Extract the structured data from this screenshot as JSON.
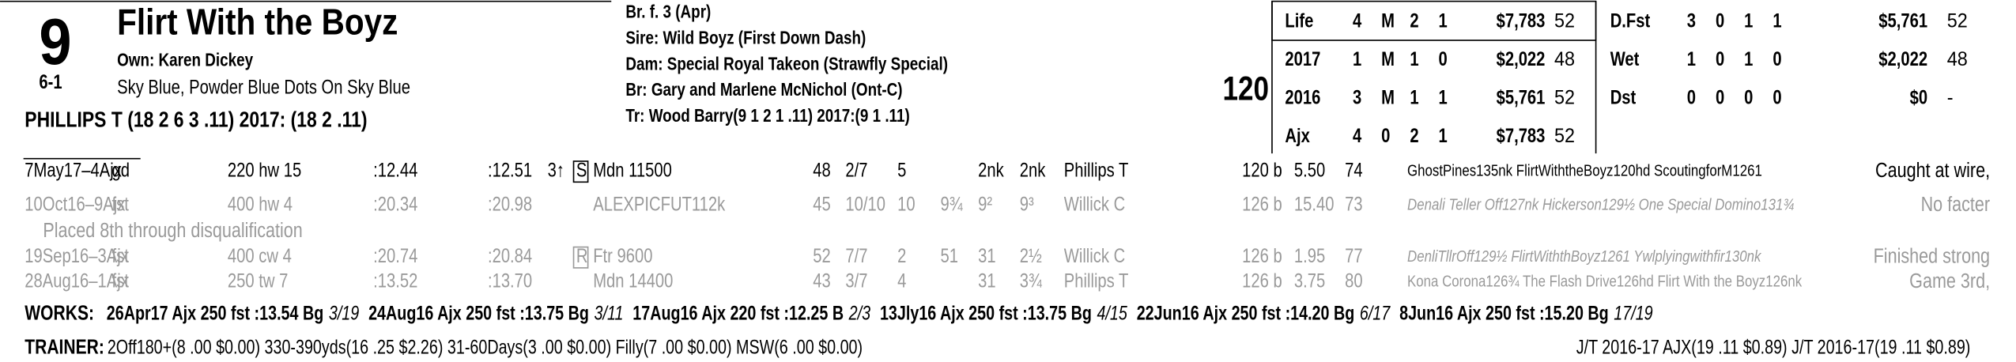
{
  "header": {
    "number": "9",
    "odds": "6-1",
    "name": "Flirt With the Boyz",
    "owner": "Own: Karen Dickey",
    "silks": "Sky Blue, Powder Blue Dots On Sky Blue",
    "jockey": "PHILLIPS T (18 2 6 3 .11) 2017: (18 2 .11)",
    "breeding": [
      "Br. f. 3 (Apr)",
      "Sire: Wild Boyz (First Down Dash)",
      "Dam: Special Royal Takeon (Strawfly Special)",
      "Br:   Gary and Marlene McNichol (Ont-C)",
      "Tr:   Wood Barry(9 1 2 1 .11)  2017:(9 1 .11)"
    ],
    "weight": "120"
  },
  "stats": {
    "left": [
      {
        "label": "Life",
        "starts": 4,
        "wins": "M",
        "places": 2,
        "shows": 1,
        "earnings": "$7,783",
        "speed": 52
      },
      {
        "label": "2017",
        "starts": 1,
        "wins": "M",
        "places": 1,
        "shows": 0,
        "earnings": "$2,022",
        "speed": 48
      },
      {
        "label": "2016",
        "starts": 3,
        "wins": "M",
        "places": 1,
        "shows": 1,
        "earnings": "$5,761",
        "speed": 52
      },
      {
        "label": "Ajx",
        "starts": 4,
        "wins": 0,
        "places": 2,
        "shows": 1,
        "earnings": "$7,783",
        "speed": 52
      }
    ],
    "right": [
      {
        "label": "D.Fst",
        "starts": 3,
        "wins": 0,
        "places": 1,
        "shows": 1,
        "earnings": "$5,761",
        "speed": 52
      },
      {
        "label": "Wet",
        "starts": 1,
        "wins": 0,
        "places": 1,
        "shows": 0,
        "earnings": "$2,022",
        "speed": 48
      },
      {
        "label": "Dst",
        "starts": 0,
        "wins": 0,
        "places": 0,
        "shows": 0,
        "earnings": "$0",
        "speed": "-"
      }
    ]
  },
  "past_performances": [
    {
      "date": "7May17–4Ajx",
      "surface": "gd",
      "distance": "220 hw 15",
      "frac1": ":12.44",
      "frac2": ":12.51",
      "age": "3↑",
      "restriction": "S",
      "race": "Mdn 11500",
      "speed": 48,
      "post": "2/7",
      "start": "5",
      "call2": "2nk",
      "finish": "2nk",
      "jockey": "Phillips T",
      "weight": "120 b",
      "odds": "5.50",
      "rating": 74,
      "comment": "GhostPines135nk FlirtWiththeBoyz120hd ScoutingforM1261",
      "remark": "Caught at wire,"
    },
    {
      "date": "10Oct16–9Ajx",
      "surface": "fst",
      "distance": "400 hw 4",
      "frac1": ":20.34",
      "frac2": ":20.98",
      "race": "ALEXPICFUT112k",
      "speed": 45,
      "post": "10/10",
      "start": "10",
      "call1": "9¾",
      "call2": "9²",
      "finish": "9³",
      "jockey": "Willick C",
      "weight": "126 b",
      "odds": "15.40",
      "rating": 73,
      "comment": "Denali Teller Off127nk Hickerson129½ One Special Domino131¾",
      "remark": "No facter",
      "note": "Placed 8th through disqualification"
    },
    {
      "date": "19Sep16–3Ajx",
      "surface": "fst",
      "distance": "400 cw 4",
      "frac1": ":20.74",
      "frac2": ":20.84",
      "restriction": "R",
      "race": "Ftr 9600",
      "speed": 52,
      "post": "7/7",
      "start": "2",
      "call1": "51",
      "call2": "31",
      "finish": "2½",
      "jockey": "Willick C",
      "weight": "126 b",
      "odds": "1.95",
      "rating": 77,
      "comment": "DenliTllrOff129½ FlirtWiththBoyz1261 Ywlplyingwithfir130nk",
      "remark": "Finished strong"
    },
    {
      "date": "28Aug16–1Ajx",
      "surface": "fst",
      "distance": "250 tw 7",
      "frac1": ":13.52",
      "frac2": ":13.70",
      "race": "Mdn 14400",
      "speed": 43,
      "post": "3/7",
      "start": "4",
      "call2": "31",
      "finish": "3¾",
      "jockey": "Phillips T",
      "weight": "126 b",
      "odds": "3.75",
      "rating": 80,
      "comment": "Kona Corona126¾ The Flash Drive126hd Flirt With the Boyz126nk",
      "remark": "Game 3rd,"
    }
  ],
  "works": {
    "label": "WORKS:",
    "entries": [
      {
        "text": "26Apr17 Ajx 250 fst :13.54 Bg",
        "rank": "3/19"
      },
      {
        "text": "24Aug16 Ajx 250 fst :13.75 Bg",
        "rank": "3/11"
      },
      {
        "text": "17Aug16 Ajx 220 fst :12.25 B",
        "rank": "2/3"
      },
      {
        "text": "13Jly16 Ajx 250 fst :13.75 Bg",
        "rank": "4/15"
      },
      {
        "text": "22Jun16 Ajx 250 fst :14.20 Bg",
        "rank": "6/17"
      },
      {
        "text": "8Jun16 Ajx 250 fst :15.20 Bg",
        "rank": "17/19"
      }
    ]
  },
  "trainer": {
    "label": "TRAINER:",
    "stats": "2Off180+(8 .00 $0.00) 330-390yds(16 .25 $2.26) 31-60Days(3 .00 $0.00) Filly(7 .00 $0.00) MSW(6 .00 $0.00)",
    "jt": "J/T 2016-17 AJX(19 .11 $0.89)  J/T 2016-17(19 .11 $0.89)"
  }
}
